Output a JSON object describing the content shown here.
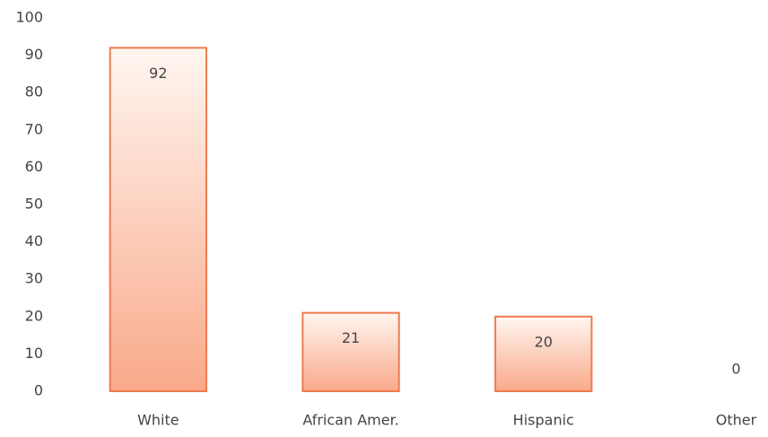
{
  "chart_data": {
    "type": "bar",
    "categories": [
      "White",
      "African Amer.",
      "Hispanic",
      "Other"
    ],
    "values": [
      92,
      21,
      20,
      0
    ],
    "color": "#ef7b50",
    "ylim": [
      0,
      100
    ],
    "yticks": [
      0,
      10,
      20,
      30,
      40,
      50,
      60,
      70,
      80,
      90,
      100
    ],
    "grid": false
  }
}
